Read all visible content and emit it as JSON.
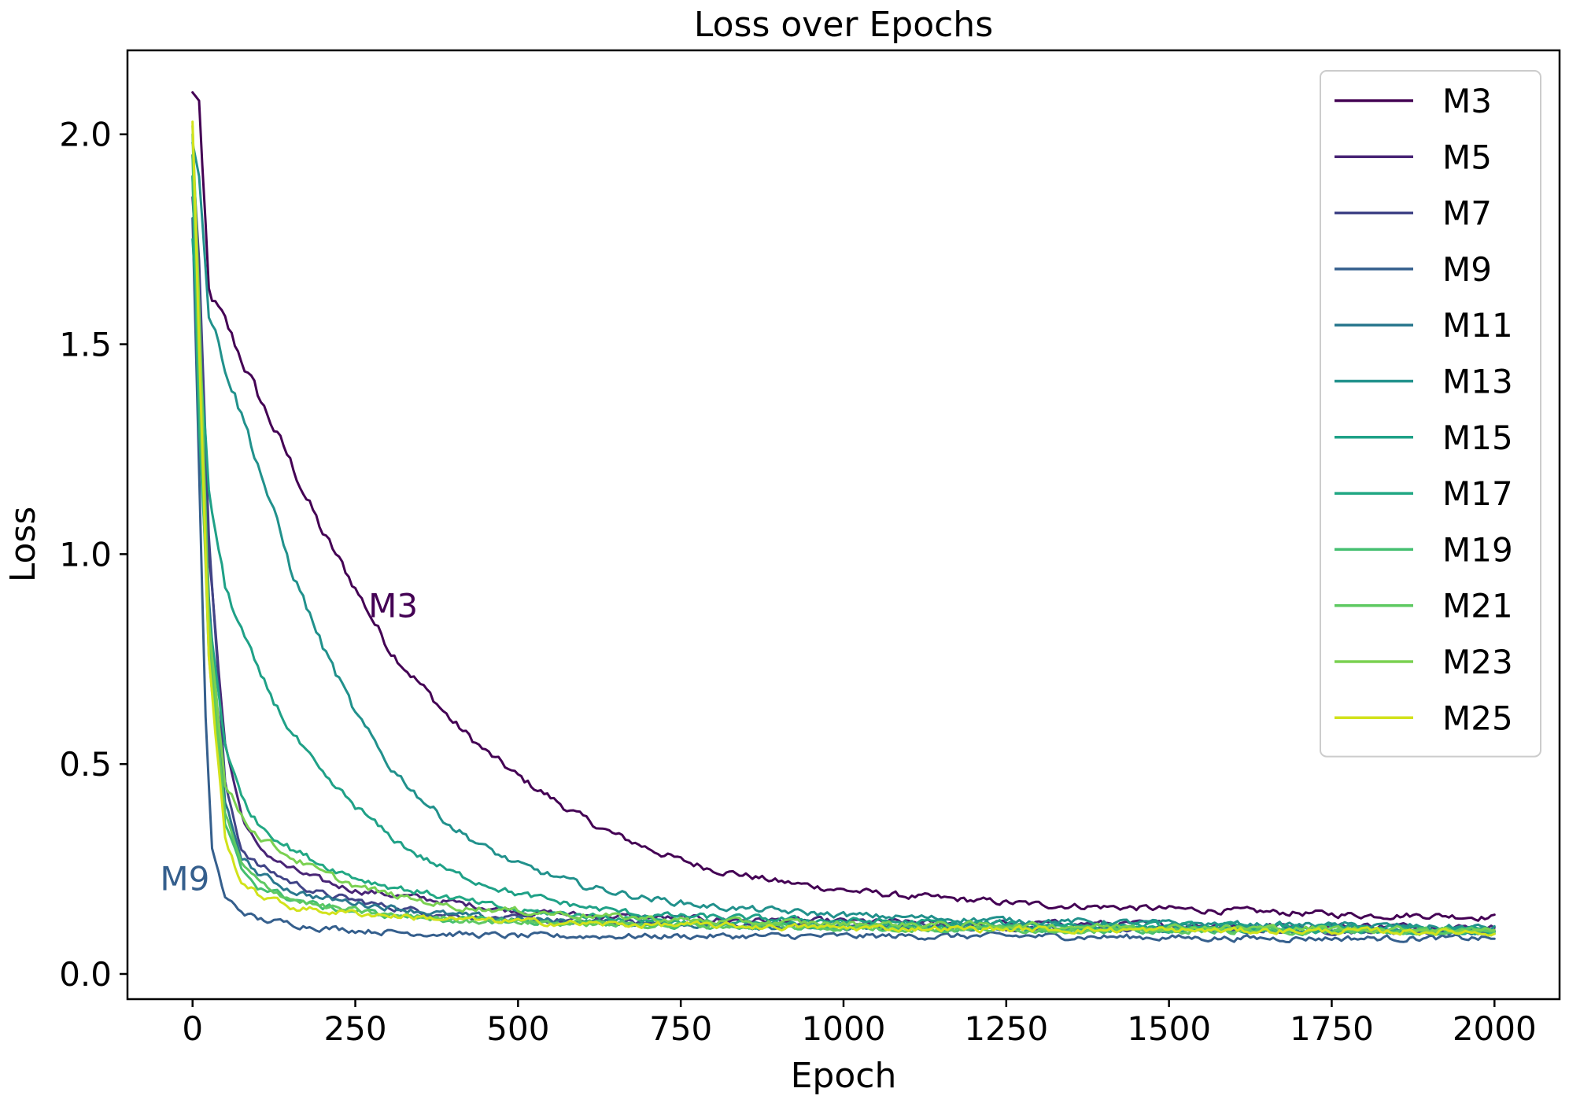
{
  "chart_data": {
    "type": "line",
    "title": "Loss over Epochs",
    "xlabel": "Epoch",
    "ylabel": "Loss",
    "xlim": [
      -100,
      2100
    ],
    "ylim": [
      -0.06,
      2.2
    ],
    "xticks": [
      0,
      250,
      500,
      750,
      1000,
      1250,
      1500,
      1750,
      2000
    ],
    "xtick_labels": [
      "0",
      "250",
      "500",
      "750",
      "1000",
      "1250",
      "1500",
      "1750",
      "2000"
    ],
    "yticks": [
      0.0,
      0.5,
      1.0,
      1.5,
      2.0
    ],
    "ytick_labels": [
      "0.0",
      "0.5",
      "1.0",
      "1.5",
      "2.0"
    ],
    "grid": false,
    "legend_position": "top-right",
    "series": [
      {
        "name": "M3",
        "color": "#440154",
        "points": [
          [
            0,
            2.1
          ],
          [
            10,
            2.08
          ],
          [
            25,
            1.62
          ],
          [
            50,
            1.55
          ],
          [
            100,
            1.38
          ],
          [
            150,
            1.22
          ],
          [
            200,
            1.05
          ],
          [
            250,
            0.92
          ],
          [
            300,
            0.78
          ],
          [
            350,
            0.69
          ],
          [
            400,
            0.6
          ],
          [
            450,
            0.53
          ],
          [
            500,
            0.47
          ],
          [
            550,
            0.42
          ],
          [
            600,
            0.37
          ],
          [
            650,
            0.33
          ],
          [
            700,
            0.3
          ],
          [
            750,
            0.27
          ],
          [
            800,
            0.25
          ],
          [
            900,
            0.22
          ],
          [
            1000,
            0.2
          ],
          [
            1100,
            0.185
          ],
          [
            1200,
            0.175
          ],
          [
            1300,
            0.165
          ],
          [
            1400,
            0.16
          ],
          [
            1500,
            0.155
          ],
          [
            1600,
            0.15
          ],
          [
            1700,
            0.145
          ],
          [
            1800,
            0.14
          ],
          [
            1900,
            0.14
          ],
          [
            2000,
            0.135
          ]
        ]
      },
      {
        "name": "M5",
        "color": "#482475",
        "points": [
          [
            0,
            1.85
          ],
          [
            10,
            1.6
          ],
          [
            25,
            1.0
          ],
          [
            50,
            0.55
          ],
          [
            75,
            0.38
          ],
          [
            100,
            0.3
          ],
          [
            150,
            0.25
          ],
          [
            200,
            0.22
          ],
          [
            250,
            0.2
          ],
          [
            300,
            0.19
          ],
          [
            400,
            0.17
          ],
          [
            500,
            0.15
          ],
          [
            600,
            0.14
          ],
          [
            800,
            0.13
          ],
          [
            1000,
            0.125
          ],
          [
            1200,
            0.12
          ],
          [
            1400,
            0.12
          ],
          [
            1600,
            0.115
          ],
          [
            1800,
            0.115
          ],
          [
            2000,
            0.11
          ]
        ]
      },
      {
        "name": "M7",
        "color": "#414487",
        "points": [
          [
            0,
            1.95
          ],
          [
            10,
            1.7
          ],
          [
            25,
            1.05
          ],
          [
            50,
            0.45
          ],
          [
            75,
            0.3
          ],
          [
            100,
            0.26
          ],
          [
            150,
            0.22
          ],
          [
            200,
            0.19
          ],
          [
            300,
            0.16
          ],
          [
            400,
            0.14
          ],
          [
            500,
            0.13
          ],
          [
            700,
            0.12
          ],
          [
            1000,
            0.115
          ],
          [
            1300,
            0.11
          ],
          [
            1600,
            0.105
          ],
          [
            2000,
            0.1
          ]
        ]
      },
      {
        "name": "M9",
        "color": "#355f8d",
        "points": [
          [
            0,
            1.8
          ],
          [
            10,
            1.2
          ],
          [
            20,
            0.6
          ],
          [
            30,
            0.3
          ],
          [
            50,
            0.18
          ],
          [
            75,
            0.15
          ],
          [
            100,
            0.13
          ],
          [
            150,
            0.12
          ],
          [
            200,
            0.11
          ],
          [
            300,
            0.1
          ],
          [
            400,
            0.095
          ],
          [
            500,
            0.09
          ],
          [
            700,
            0.09
          ],
          [
            1000,
            0.09
          ],
          [
            1300,
            0.09
          ],
          [
            1600,
            0.085
          ],
          [
            2000,
            0.085
          ]
        ]
      },
      {
        "name": "M11",
        "color": "#2a788e",
        "points": [
          [
            0,
            1.9
          ],
          [
            10,
            1.5
          ],
          [
            25,
            0.9
          ],
          [
            50,
            0.4
          ],
          [
            75,
            0.28
          ],
          [
            100,
            0.24
          ],
          [
            150,
            0.2
          ],
          [
            200,
            0.18
          ],
          [
            300,
            0.16
          ],
          [
            400,
            0.14
          ],
          [
            500,
            0.13
          ],
          [
            700,
            0.12
          ],
          [
            1000,
            0.11
          ],
          [
            1300,
            0.11
          ],
          [
            1600,
            0.105
          ],
          [
            2000,
            0.1
          ]
        ]
      },
      {
        "name": "M13",
        "color": "#21918c",
        "points": [
          [
            0,
            1.98
          ],
          [
            10,
            1.9
          ],
          [
            25,
            1.58
          ],
          [
            50,
            1.45
          ],
          [
            100,
            1.22
          ],
          [
            150,
            0.97
          ],
          [
            200,
            0.78
          ],
          [
            250,
            0.62
          ],
          [
            300,
            0.5
          ],
          [
            350,
            0.42
          ],
          [
            400,
            0.35
          ],
          [
            450,
            0.3
          ],
          [
            500,
            0.26
          ],
          [
            600,
            0.21
          ],
          [
            700,
            0.18
          ],
          [
            800,
            0.16
          ],
          [
            1000,
            0.14
          ],
          [
            1200,
            0.13
          ],
          [
            1500,
            0.12
          ],
          [
            1800,
            0.115
          ],
          [
            2000,
            0.11
          ]
        ]
      },
      {
        "name": "M15",
        "color": "#1fa187",
        "points": [
          [
            0,
            1.75
          ],
          [
            10,
            1.5
          ],
          [
            25,
            1.15
          ],
          [
            50,
            0.92
          ],
          [
            100,
            0.72
          ],
          [
            150,
            0.58
          ],
          [
            200,
            0.47
          ],
          [
            250,
            0.4
          ],
          [
            300,
            0.33
          ],
          [
            350,
            0.28
          ],
          [
            400,
            0.24
          ],
          [
            500,
            0.19
          ],
          [
            600,
            0.16
          ],
          [
            700,
            0.14
          ],
          [
            900,
            0.13
          ],
          [
            1200,
            0.12
          ],
          [
            1500,
            0.115
          ],
          [
            1800,
            0.11
          ],
          [
            2000,
            0.105
          ]
        ]
      },
      {
        "name": "M17",
        "color": "#22a884",
        "points": [
          [
            0,
            1.9
          ],
          [
            10,
            1.3
          ],
          [
            25,
            0.85
          ],
          [
            50,
            0.55
          ],
          [
            75,
            0.42
          ],
          [
            100,
            0.36
          ],
          [
            150,
            0.3
          ],
          [
            200,
            0.26
          ],
          [
            250,
            0.23
          ],
          [
            300,
            0.21
          ],
          [
            400,
            0.18
          ],
          [
            500,
            0.15
          ],
          [
            600,
            0.14
          ],
          [
            800,
            0.12
          ],
          [
            1000,
            0.115
          ],
          [
            1300,
            0.11
          ],
          [
            1600,
            0.105
          ],
          [
            2000,
            0.1
          ]
        ]
      },
      {
        "name": "M19",
        "color": "#44bf70",
        "points": [
          [
            0,
            1.95
          ],
          [
            10,
            1.4
          ],
          [
            25,
            0.75
          ],
          [
            50,
            0.35
          ],
          [
            75,
            0.25
          ],
          [
            100,
            0.21
          ],
          [
            150,
            0.18
          ],
          [
            200,
            0.16
          ],
          [
            300,
            0.14
          ],
          [
            400,
            0.13
          ],
          [
            600,
            0.12
          ],
          [
            800,
            0.115
          ],
          [
            1000,
            0.11
          ],
          [
            1400,
            0.105
          ],
          [
            2000,
            0.1
          ]
        ]
      },
      {
        "name": "M21",
        "color": "#5ec962",
        "points": [
          [
            0,
            2.0
          ],
          [
            10,
            1.5
          ],
          [
            25,
            0.8
          ],
          [
            50,
            0.38
          ],
          [
            75,
            0.26
          ],
          [
            100,
            0.22
          ],
          [
            150,
            0.18
          ],
          [
            200,
            0.16
          ],
          [
            300,
            0.14
          ],
          [
            400,
            0.13
          ],
          [
            600,
            0.12
          ],
          [
            800,
            0.115
          ],
          [
            1000,
            0.11
          ],
          [
            1400,
            0.105
          ],
          [
            2000,
            0.1
          ]
        ]
      },
      {
        "name": "M23",
        "color": "#7ad151",
        "points": [
          [
            0,
            2.02
          ],
          [
            10,
            1.6
          ],
          [
            25,
            0.85
          ],
          [
            50,
            0.45
          ],
          [
            75,
            0.38
          ],
          [
            100,
            0.33
          ],
          [
            150,
            0.28
          ],
          [
            200,
            0.24
          ],
          [
            250,
            0.21
          ],
          [
            300,
            0.19
          ],
          [
            400,
            0.16
          ],
          [
            500,
            0.15
          ],
          [
            600,
            0.14
          ],
          [
            800,
            0.125
          ],
          [
            1000,
            0.12
          ],
          [
            1300,
            0.115
          ],
          [
            1600,
            0.11
          ],
          [
            2000,
            0.105
          ]
        ]
      },
      {
        "name": "M25",
        "color": "#d2e21b",
        "points": [
          [
            0,
            2.03
          ],
          [
            10,
            1.5
          ],
          [
            25,
            0.75
          ],
          [
            50,
            0.32
          ],
          [
            75,
            0.22
          ],
          [
            100,
            0.19
          ],
          [
            150,
            0.16
          ],
          [
            200,
            0.15
          ],
          [
            300,
            0.14
          ],
          [
            400,
            0.13
          ],
          [
            600,
            0.12
          ],
          [
            800,
            0.115
          ],
          [
            1000,
            0.11
          ],
          [
            1400,
            0.105
          ],
          [
            2000,
            0.1
          ]
        ]
      }
    ],
    "annotations": [
      {
        "text": "M3",
        "x": 270,
        "y": 0.85,
        "color": "#440154"
      },
      {
        "text": "M9",
        "x": -50,
        "y": 0.2,
        "color": "#355f8d"
      }
    ]
  }
}
